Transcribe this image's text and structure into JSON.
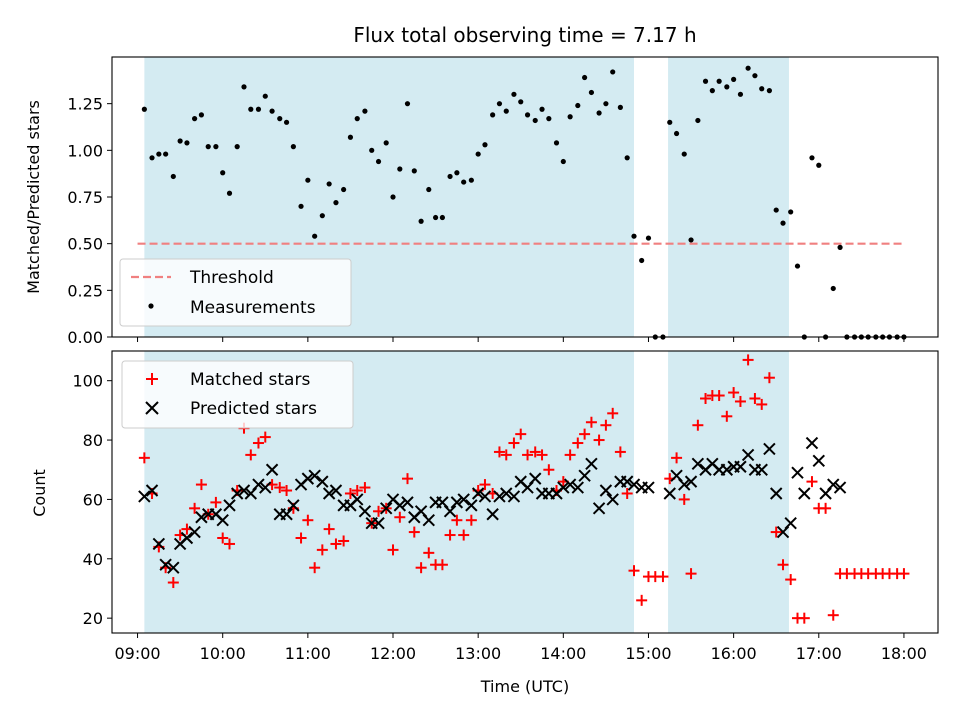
{
  "chart_data": [
    {
      "type": "scatter",
      "title": "Flux total observing time = 7.17 h",
      "xlabel": "",
      "ylabel": "Matched/Predicted stars",
      "xlim": [
        8.7,
        18.4
      ],
      "ylim": [
        0.0,
        1.5
      ],
      "yticks": [
        0.0,
        0.25,
        0.5,
        0.75,
        1.0,
        1.25
      ],
      "ytick_labels": [
        "0.00",
        "0.25",
        "0.50",
        "0.75",
        "1.00",
        "1.25"
      ],
      "shaded_intervals": [
        [
          9.08,
          14.83
        ],
        [
          15.23,
          16.65
        ]
      ],
      "threshold": {
        "name": "Threshold",
        "value": 0.5,
        "x_range": [
          9.0,
          18.0
        ],
        "color": "#f08080"
      },
      "legend": {
        "position": "lower-left",
        "entries": [
          "Threshold",
          "Measurements"
        ]
      },
      "series": [
        {
          "name": "Measurements",
          "color": "#000000",
          "marker": "dot",
          "x": [
            9.08,
            9.17,
            9.25,
            9.33,
            9.42,
            9.5,
            9.58,
            9.67,
            9.75,
            9.83,
            9.92,
            10.0,
            10.08,
            10.17,
            10.25,
            10.33,
            10.42,
            10.5,
            10.58,
            10.67,
            10.75,
            10.83,
            10.92,
            11.0,
            11.08,
            11.17,
            11.25,
            11.33,
            11.42,
            11.5,
            11.58,
            11.67,
            11.75,
            11.83,
            11.92,
            12.0,
            12.08,
            12.17,
            12.25,
            12.33,
            12.42,
            12.5,
            12.58,
            12.67,
            12.75,
            12.83,
            12.92,
            13.0,
            13.08,
            13.17,
            13.25,
            13.33,
            13.42,
            13.5,
            13.58,
            13.67,
            13.75,
            13.83,
            13.92,
            14.0,
            14.08,
            14.17,
            14.25,
            14.33,
            14.42,
            14.5,
            14.58,
            14.67,
            14.75,
            14.83,
            14.92,
            15.0,
            15.08,
            15.17,
            15.25,
            15.33,
            15.42,
            15.5,
            15.58,
            15.67,
            15.75,
            15.83,
            15.92,
            16.0,
            16.08,
            16.17,
            16.25,
            16.33,
            16.42,
            16.5,
            16.58,
            16.67,
            16.75,
            16.83,
            16.92,
            17.0,
            17.08,
            17.17,
            17.25,
            17.33,
            17.42,
            17.5,
            17.58,
            17.67,
            17.75,
            17.83,
            17.92,
            18.0
          ],
          "y": [
            1.22,
            0.96,
            0.98,
            0.98,
            0.86,
            1.05,
            1.04,
            1.17,
            1.19,
            1.02,
            1.02,
            0.88,
            0.77,
            1.02,
            1.34,
            1.22,
            1.22,
            1.29,
            1.21,
            1.17,
            1.15,
            1.02,
            0.7,
            0.84,
            0.54,
            0.65,
            0.82,
            0.72,
            0.79,
            1.07,
            1.17,
            1.21,
            1.0,
            0.94,
            1.04,
            0.75,
            0.9,
            1.25,
            0.89,
            0.62,
            0.79,
            0.64,
            0.64,
            0.86,
            0.88,
            0.83,
            0.84,
            0.98,
            1.03,
            1.19,
            1.25,
            1.21,
            1.3,
            1.26,
            1.19,
            1.16,
            1.22,
            1.17,
            1.04,
            0.94,
            1.18,
            1.24,
            1.39,
            1.31,
            1.2,
            1.25,
            1.42,
            1.23,
            0.96,
            0.54,
            0.41,
            0.53,
            0.0,
            0.0,
            1.15,
            1.09,
            0.98,
            0.52,
            1.16,
            1.37,
            1.32,
            1.37,
            1.34,
            1.38,
            1.3,
            1.44,
            1.4,
            1.33,
            1.32,
            0.68,
            0.61,
            0.67,
            0.38,
            0.0,
            0.96,
            0.92,
            0.0,
            0.26,
            0.48,
            0.0,
            0.0,
            0.0,
            0.0,
            0.0,
            0.0,
            0.0,
            0.0,
            0.0
          ]
        }
      ]
    },
    {
      "type": "scatter",
      "title": "",
      "xlabel": "Time (UTC)",
      "ylabel": "Count",
      "xlim": [
        8.7,
        18.4
      ],
      "ylim": [
        15,
        110
      ],
      "xticks": [
        9,
        10,
        11,
        12,
        13,
        14,
        15,
        16,
        17,
        18
      ],
      "xtick_labels": [
        "09:00",
        "10:00",
        "11:00",
        "12:00",
        "13:00",
        "14:00",
        "15:00",
        "16:00",
        "17:00",
        "18:00"
      ],
      "yticks": [
        20,
        40,
        60,
        80,
        100
      ],
      "ytick_labels": [
        "20",
        "40",
        "60",
        "80",
        "100"
      ],
      "shaded_intervals": [
        [
          9.08,
          14.83
        ],
        [
          15.23,
          16.65
        ]
      ],
      "legend": {
        "position": "upper-left",
        "entries": [
          "Matched stars",
          "Predicted stars"
        ]
      },
      "series": [
        {
          "name": "Matched stars",
          "color": "#ff0000",
          "marker": "plus",
          "x": [
            9.08,
            9.17,
            9.25,
            9.33,
            9.42,
            9.5,
            9.58,
            9.67,
            9.75,
            9.83,
            9.92,
            10.0,
            10.08,
            10.17,
            10.25,
            10.33,
            10.42,
            10.5,
            10.58,
            10.67,
            10.75,
            10.83,
            10.92,
            11.0,
            11.08,
            11.17,
            11.25,
            11.33,
            11.42,
            11.5,
            11.58,
            11.67,
            11.75,
            11.83,
            11.92,
            12.0,
            12.08,
            12.17,
            12.25,
            12.33,
            12.42,
            12.5,
            12.58,
            12.67,
            12.75,
            12.83,
            12.92,
            13.0,
            13.08,
            13.17,
            13.25,
            13.33,
            13.42,
            13.5,
            13.58,
            13.67,
            13.75,
            13.83,
            13.92,
            14.0,
            14.08,
            14.17,
            14.25,
            14.33,
            14.42,
            14.5,
            14.58,
            14.67,
            14.75,
            14.83,
            14.92,
            15.0,
            15.08,
            15.17,
            15.25,
            15.33,
            15.42,
            15.5,
            15.58,
            15.67,
            15.75,
            15.83,
            15.92,
            16.0,
            16.08,
            16.17,
            16.25,
            16.33,
            16.42,
            16.5,
            16.58,
            16.67,
            16.75,
            16.83,
            16.92,
            17.0,
            17.08,
            17.17,
            17.25,
            17.33,
            17.42,
            17.5,
            17.58,
            17.67,
            17.75,
            17.83,
            17.92,
            18.0
          ],
          "y": [
            74,
            62,
            44,
            37,
            32,
            48,
            50,
            57,
            65,
            55,
            59,
            47,
            45,
            63,
            84,
            75,
            79,
            81,
            65,
            64,
            63,
            57,
            47,
            53,
            37,
            43,
            50,
            45,
            46,
            62,
            63,
            64,
            52,
            56,
            57,
            43,
            54,
            67,
            49,
            37,
            42,
            38,
            38,
            48,
            53,
            48,
            53,
            63,
            65,
            62,
            76,
            75,
            79,
            82,
            75,
            76,
            75,
            70,
            63,
            66,
            75,
            79,
            82,
            86,
            80,
            85,
            89,
            76,
            62,
            36,
            26,
            34,
            34,
            34,
            67,
            74,
            60,
            35,
            85,
            94,
            95,
            95,
            88,
            96,
            93,
            107,
            94,
            92,
            101,
            49,
            38,
            33,
            20,
            20,
            66,
            57,
            57,
            21,
            35,
            35,
            35,
            35,
            35,
            35,
            35,
            35,
            35,
            35
          ]
        },
        {
          "name": "Predicted stars",
          "color": "#000000",
          "marker": "x",
          "x": [
            9.08,
            9.17,
            9.25,
            9.33,
            9.42,
            9.5,
            9.58,
            9.67,
            9.75,
            9.83,
            9.92,
            10.0,
            10.08,
            10.17,
            10.25,
            10.33,
            10.42,
            10.5,
            10.58,
            10.67,
            10.75,
            10.83,
            10.92,
            11.0,
            11.08,
            11.17,
            11.25,
            11.33,
            11.42,
            11.5,
            11.58,
            11.67,
            11.75,
            11.83,
            11.92,
            12.0,
            12.08,
            12.17,
            12.25,
            12.33,
            12.42,
            12.5,
            12.58,
            12.67,
            12.75,
            12.83,
            12.92,
            13.0,
            13.08,
            13.17,
            13.25,
            13.33,
            13.42,
            13.5,
            13.58,
            13.67,
            13.75,
            13.83,
            13.92,
            14.0,
            14.08,
            14.17,
            14.25,
            14.33,
            14.42,
            14.5,
            14.58,
            14.67,
            14.75,
            14.83,
            14.92,
            15.0,
            15.25,
            15.33,
            15.42,
            15.5,
            15.58,
            15.67,
            15.75,
            15.83,
            15.92,
            16.0,
            16.08,
            16.17,
            16.25,
            16.33,
            16.42,
            16.5,
            16.58,
            16.67,
            16.75,
            16.83,
            16.92,
            17.0,
            17.08,
            17.17,
            17.25
          ],
          "y": [
            61,
            63,
            45,
            38,
            37,
            45,
            47,
            49,
            54,
            55,
            55,
            53,
            58,
            62,
            63,
            62,
            65,
            64,
            70,
            55,
            55,
            58,
            65,
            67,
            68,
            66,
            62,
            63,
            58,
            58,
            60,
            56,
            52,
            52,
            57,
            60,
            58,
            59,
            54,
            56,
            53,
            59,
            59,
            56,
            59,
            60,
            58,
            62,
            61,
            55,
            61,
            62,
            61,
            66,
            64,
            67,
            62,
            62,
            62,
            64,
            65,
            64,
            68,
            72,
            57,
            63,
            60,
            66,
            66,
            65,
            64,
            64,
            62,
            68,
            65,
            66,
            72,
            70,
            72,
            70,
            70,
            71,
            71,
            75,
            70,
            70,
            77,
            62,
            49,
            52,
            69,
            62,
            79,
            73,
            62,
            65,
            64
          ]
        }
      ]
    }
  ]
}
